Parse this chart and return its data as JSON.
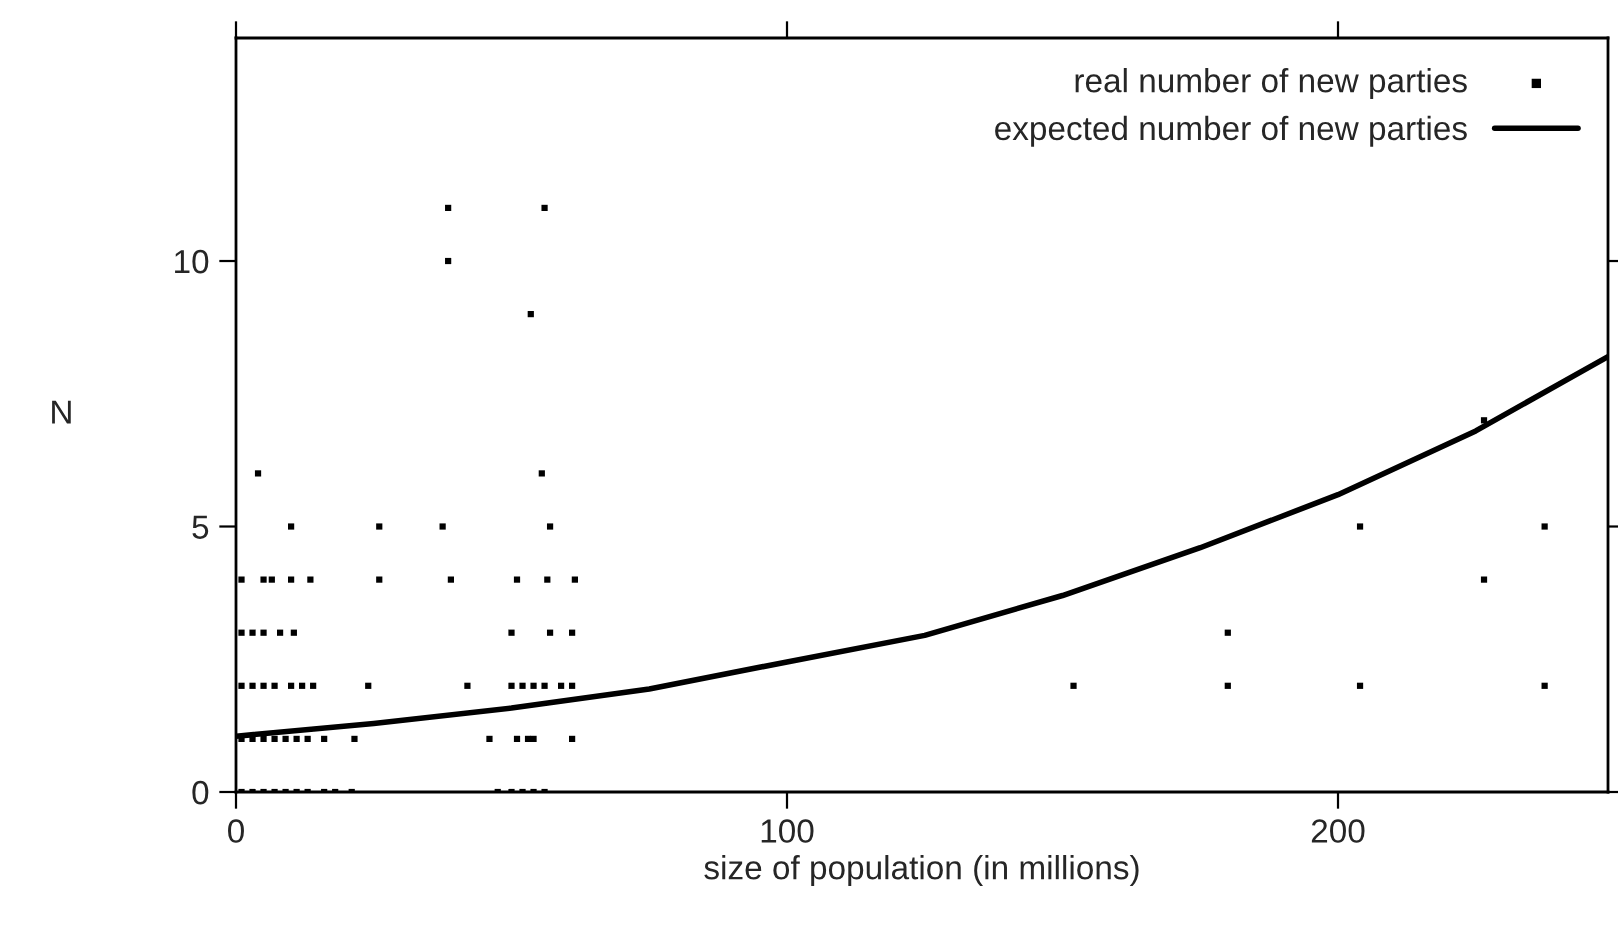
{
  "chart_data": {
    "type": "scatter",
    "xlabel": "size of population (in millions)",
    "ylabel": "N",
    "xlim": [
      0,
      249
    ],
    "ylim": [
      0,
      14.2
    ],
    "xticks": [
      0,
      100,
      200
    ],
    "yticks": [
      0,
      5,
      10
    ],
    "grid": false,
    "legend": "top right",
    "series": [
      {
        "name": "real number of new parties",
        "color": "#000000",
        "marker": "square",
        "x": [
          1,
          3,
          5,
          7,
          9,
          11,
          13,
          16,
          18,
          21,
          47.5,
          50,
          52,
          54,
          56,
          1,
          3,
          5,
          7,
          9,
          11,
          13,
          16,
          21.5,
          46,
          51,
          53,
          54,
          61,
          1,
          3,
          5,
          7,
          10,
          12,
          14,
          24,
          42,
          50,
          52,
          54,
          56,
          59,
          61,
          1,
          3,
          5,
          8,
          10.5,
          50,
          57,
          61,
          1,
          5,
          6.5,
          10,
          13.5,
          26,
          39,
          51,
          56.5,
          61.5,
          10,
          26,
          37.5,
          57,
          4,
          55.5,
          53.5,
          38.5,
          38.5,
          56,
          152,
          180,
          180,
          204,
          204,
          226.5,
          226.5,
          237.5,
          237.5
        ],
        "values": [
          0,
          0,
          0,
          0,
          0,
          0,
          0,
          0,
          0,
          0,
          0,
          0,
          0,
          0,
          0,
          1,
          1,
          1,
          1,
          1,
          1,
          1,
          1,
          1,
          1,
          1,
          1,
          1,
          1,
          2,
          2,
          2,
          2,
          2,
          2,
          2,
          2,
          2,
          2,
          2,
          2,
          2,
          2,
          2,
          3,
          3,
          3,
          3,
          3,
          3,
          3,
          3,
          4,
          4,
          4,
          4,
          4,
          4,
          4,
          4,
          4,
          4,
          5,
          5,
          5,
          5,
          6,
          6,
          9,
          10,
          11,
          11,
          2,
          2,
          3,
          2,
          5,
          4,
          7,
          2,
          5
        ]
      },
      {
        "name": "expected number of new parties",
        "type": "line",
        "color": "#000000",
        "line_style": "solid",
        "x": [
          0,
          25,
          50,
          75,
          100,
          125,
          150,
          175,
          200,
          225,
          249
        ],
        "values": [
          1.05,
          1.29,
          1.58,
          1.94,
          2.45,
          2.95,
          3.7,
          4.6,
          5.6,
          6.8,
          8.2
        ]
      }
    ]
  }
}
